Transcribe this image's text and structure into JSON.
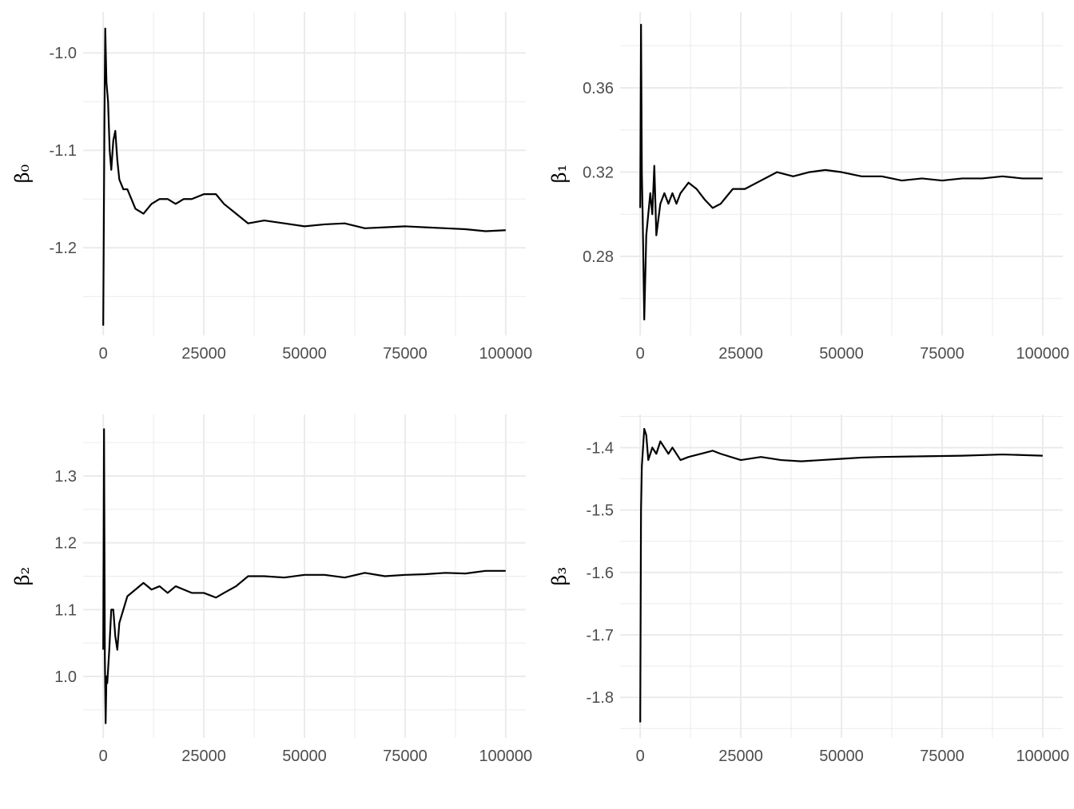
{
  "chart_data": [
    {
      "type": "line",
      "y_label": "β₀",
      "grid": true,
      "color": "#000000",
      "xlim": [
        -5000,
        105000
      ],
      "xticks": [
        0,
        25000,
        50000,
        75000,
        100000
      ],
      "ylim": [
        -1.29,
        -0.958
      ],
      "yticks": [
        -1.2,
        -1.1,
        {
          "value": -1.0,
          "label": "-1.0"
        }
      ],
      "x": [
        0,
        300,
        500,
        800,
        1200,
        1600,
        2000,
        2500,
        3000,
        3500,
        4000,
        5000,
        6000,
        7000,
        8000,
        10000,
        12000,
        14000,
        16000,
        18000,
        20000,
        22000,
        25000,
        28000,
        30000,
        33000,
        36000,
        40000,
        45000,
        50000,
        55000,
        60000,
        65000,
        70000,
        75000,
        80000,
        85000,
        90000,
        95000,
        100000
      ],
      "series": [
        {
          "values": [
            -1.28,
            -1.07,
            -0.975,
            -1.03,
            -1.05,
            -1.1,
            -1.12,
            -1.09,
            -1.08,
            -1.11,
            -1.13,
            -1.14,
            -1.14,
            -1.15,
            -1.16,
            -1.165,
            -1.155,
            -1.15,
            -1.15,
            -1.155,
            -1.15,
            -1.15,
            -1.145,
            -1.145,
            -1.155,
            -1.165,
            -1.175,
            -1.172,
            -1.175,
            -1.178,
            -1.176,
            -1.175,
            -1.18,
            -1.179,
            -1.178,
            -1.179,
            -1.18,
            -1.181,
            -1.183,
            -1.182
          ]
        }
      ]
    },
    {
      "type": "line",
      "y_label": "β₁",
      "grid": true,
      "color": "#000000",
      "xlim": [
        -5000,
        105000
      ],
      "xticks": [
        0,
        25000,
        50000,
        75000,
        100000
      ],
      "ylim": [
        0.2425,
        0.396
      ],
      "yticks": [
        0.28,
        0.32,
        0.36
      ],
      "x": [
        0,
        200,
        400,
        600,
        800,
        1000,
        1500,
        2000,
        2500,
        3000,
        3500,
        4000,
        5000,
        6000,
        7000,
        8000,
        9000,
        10000,
        12000,
        14000,
        16000,
        18000,
        20000,
        23000,
        26000,
        30000,
        34000,
        38000,
        42000,
        46000,
        50000,
        55000,
        60000,
        65000,
        70000,
        75000,
        80000,
        85000,
        90000,
        95000,
        100000
      ],
      "series": [
        {
          "values": [
            0.303,
            0.39,
            0.32,
            0.3,
            0.275,
            0.25,
            0.29,
            0.3,
            0.31,
            0.3,
            0.323,
            0.29,
            0.305,
            0.31,
            0.305,
            0.31,
            0.305,
            0.31,
            0.315,
            0.312,
            0.307,
            0.303,
            0.305,
            0.312,
            0.312,
            0.316,
            0.32,
            0.318,
            0.32,
            0.321,
            0.32,
            0.318,
            0.318,
            0.316,
            0.317,
            0.316,
            0.317,
            0.317,
            0.318,
            0.317,
            0.317
          ]
        }
      ]
    },
    {
      "type": "line",
      "y_label": "β₂",
      "grid": true,
      "color": "#000000",
      "xlim": [
        -5000,
        105000
      ],
      "xticks": [
        0,
        25000,
        50000,
        75000,
        100000
      ],
      "ylim": [
        0.908,
        1.392
      ],
      "yticks": [
        {
          "value": 1.0,
          "label": "1.0"
        },
        1.1,
        1.2,
        1.3
      ],
      "x": [
        0,
        200,
        400,
        600,
        800,
        1000,
        1500,
        2000,
        2500,
        3000,
        3500,
        4000,
        5000,
        6000,
        8000,
        10000,
        12000,
        14000,
        16000,
        18000,
        20000,
        22000,
        25000,
        28000,
        30000,
        33000,
        36000,
        40000,
        45000,
        50000,
        55000,
        60000,
        65000,
        70000,
        75000,
        80000,
        85000,
        90000,
        95000,
        100000
      ],
      "series": [
        {
          "values": [
            1.04,
            1.37,
            1.03,
            0.93,
            1.0,
            0.99,
            1.04,
            1.1,
            1.1,
            1.06,
            1.04,
            1.08,
            1.1,
            1.12,
            1.13,
            1.14,
            1.13,
            1.135,
            1.125,
            1.135,
            1.13,
            1.125,
            1.125,
            1.118,
            1.125,
            1.135,
            1.15,
            1.15,
            1.148,
            1.152,
            1.152,
            1.148,
            1.155,
            1.15,
            1.152,
            1.153,
            1.155,
            1.154,
            1.158,
            1.158
          ]
        }
      ]
    },
    {
      "type": "line",
      "y_label": "β₃",
      "grid": true,
      "color": "#000000",
      "xlim": [
        -5000,
        105000
      ],
      "xticks": [
        0,
        25000,
        50000,
        75000,
        100000
      ],
      "ylim": [
        -1.865,
        -1.347
      ],
      "yticks": [
        -1.8,
        -1.7,
        -1.6,
        -1.5,
        -1.4
      ],
      "x": [
        0,
        200,
        400,
        700,
        1000,
        1500,
        2000,
        3000,
        4000,
        5000,
        6000,
        7000,
        8000,
        10000,
        12000,
        15000,
        18000,
        20000,
        25000,
        30000,
        35000,
        40000,
        45000,
        50000,
        55000,
        60000,
        70000,
        80000,
        90000,
        100000
      ],
      "series": [
        {
          "values": [
            -1.84,
            -1.5,
            -1.43,
            -1.4,
            -1.37,
            -1.38,
            -1.42,
            -1.4,
            -1.41,
            -1.39,
            -1.4,
            -1.41,
            -1.4,
            -1.42,
            -1.415,
            -1.41,
            -1.405,
            -1.41,
            -1.42,
            -1.415,
            -1.42,
            -1.422,
            -1.42,
            -1.418,
            -1.416,
            -1.415,
            -1.414,
            -1.413,
            -1.411,
            -1.413
          ]
        }
      ]
    }
  ]
}
